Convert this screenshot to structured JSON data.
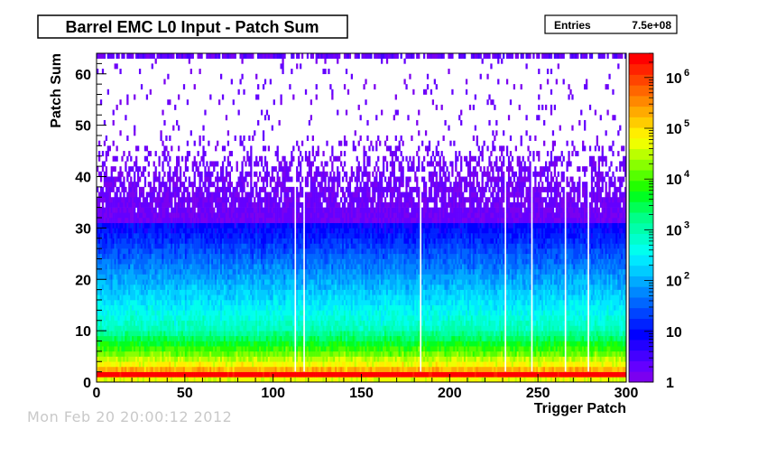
{
  "title": "Barrel EMC L0 Input - Patch Sum",
  "stats": {
    "label": "Entries",
    "value": "7.5e+08"
  },
  "footer_text": "Mon Feb 20 20:00:12 2012",
  "chart_data": {
    "type": "heatmap",
    "title": "Barrel EMC L0 Input - Patch Sum",
    "xlabel": "Trigger Patch",
    "ylabel": "Patch Sum",
    "xlim": [
      0,
      300
    ],
    "ylim": [
      0,
      64
    ],
    "x_bins": 300,
    "y_bins": 64,
    "x_ticks": [
      0,
      50,
      100,
      150,
      200,
      250,
      300
    ],
    "y_ticks": [
      0,
      10,
      20,
      30,
      40,
      50,
      60
    ],
    "z_scale": "log",
    "zlim": [
      1,
      3000000
    ],
    "z_ticks": [
      {
        "value": 1,
        "label": "1"
      },
      {
        "value": 10,
        "label": "10"
      },
      {
        "value": 100,
        "label": "10",
        "exp": "2"
      },
      {
        "value": 1000,
        "label": "10",
        "exp": "3"
      },
      {
        "value": 10000,
        "label": "10",
        "exp": "4"
      },
      {
        "value": 100000,
        "label": "10",
        "exp": "5"
      },
      {
        "value": 1000000,
        "label": "10",
        "exp": "6"
      }
    ],
    "palette": [
      "#7b00f0",
      "#6400ff",
      "#4400ff",
      "#2200ff",
      "#0000ff",
      "#0022ff",
      "#0044ff",
      "#0066ff",
      "#0088ff",
      "#00aaff",
      "#00ccff",
      "#00e8ff",
      "#00ffee",
      "#00ffcc",
      "#00ffaa",
      "#00ff88",
      "#00ff55",
      "#00ff22",
      "#22ff00",
      "#55ff00",
      "#88ff00",
      "#bbff00",
      "#eeff00",
      "#ffee00",
      "#ffcc00",
      "#ffaa00",
      "#ff8800",
      "#ff6600",
      "#ff4400",
      "#ff2200",
      "#ff0000"
    ],
    "approx_counts_by_patch_sum": [
      {
        "y": 0,
        "count": 50000
      },
      {
        "y": 1,
        "count": 3000000
      },
      {
        "y": 2,
        "count": 200000
      },
      {
        "y": 3,
        "count": 60000
      },
      {
        "y": 5,
        "count": 15000
      },
      {
        "y": 8,
        "count": 2500
      },
      {
        "y": 10,
        "count": 800
      },
      {
        "y": 15,
        "count": 250
      },
      {
        "y": 20,
        "count": 80
      },
      {
        "y": 25,
        "count": 25
      },
      {
        "y": 30,
        "count": 8
      },
      {
        "y": 35,
        "count": 2
      },
      {
        "y": 40,
        "count": 1
      },
      {
        "y": 63,
        "count": 2
      }
    ],
    "dead_patches": [
      112,
      117,
      183,
      231,
      246,
      265,
      278
    ]
  }
}
